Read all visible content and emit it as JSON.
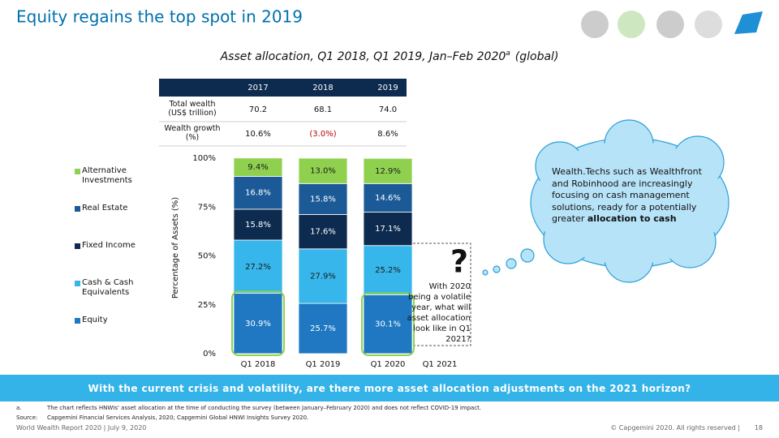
{
  "header": {
    "title": "Equity regains the top spot in 2019"
  },
  "table": {
    "columns": [
      "2017",
      "2018",
      "2019"
    ],
    "rows": [
      [
        "Total wealth (US$ trillion)",
        "70.2",
        "68.1",
        "74.0"
      ],
      [
        "Wealth growth (%)",
        "10.6%",
        "(3.0%)",
        "8.6%"
      ]
    ]
  },
  "chart_data": {
    "type": "stacked_bar",
    "title": "Asset allocation, Q1 2018, Q1 2019, Jan–Feb 2020",
    "title_note": "a",
    "title_suffix": "(global)",
    "y_label": "Percentage of Assets (%)",
    "categories": [
      "Q1 2018",
      "Q1 2019",
      "Q1 2020"
    ],
    "ylim": [
      0,
      100
    ],
    "yticks": [
      {
        "value": 0,
        "label": "0%"
      },
      {
        "value": 25,
        "label": "25%"
      },
      {
        "value": 50,
        "label": "50%"
      },
      {
        "value": 75,
        "label": "75%"
      },
      {
        "value": 100,
        "label": "100%"
      }
    ],
    "series": [
      {
        "name": "Equity",
        "color": "#1f78c1",
        "label_color": "#ffffff",
        "values": [
          30.9,
          25.7,
          30.1
        ],
        "value_labels": [
          "30.9%",
          "25.7%",
          "30.1%"
        ]
      },
      {
        "name": "Cash & Cash Equivalents",
        "color": "#36b6ea",
        "label_color": "#1a1a1a",
        "values": [
          27.2,
          27.9,
          25.2
        ],
        "value_labels": [
          "27.2%",
          "27.9%",
          "25.2%"
        ]
      },
      {
        "name": "Fixed Income",
        "color": "#0d2a4f",
        "label_color": "#ffffff",
        "values": [
          15.8,
          17.6,
          17.1
        ],
        "value_labels": [
          "15.8%",
          "17.6%",
          "17.1%"
        ]
      },
      {
        "name": "Real Estate",
        "color": "#1b5a96",
        "label_color": "#ffffff",
        "values": [
          16.8,
          15.8,
          14.6
        ],
        "value_labels": [
          "16.8%",
          "15.8%",
          "14.6%"
        ]
      },
      {
        "name": "Alternative Investments",
        "color": "#8fd14f",
        "label_color": "#1a1a1a",
        "values": [
          9.4,
          13.0,
          12.9
        ],
        "value_labels": [
          "9.4%",
          "13.0%",
          "12.9%"
        ]
      }
    ]
  },
  "outlook": {
    "label": "Q1 2021",
    "mark": "?",
    "text": "With 2020 being a volatile year, what will asset allocation look like in Q1 2021?"
  },
  "cloud": {
    "text": "Wealth.Techs such as Wealthfront and Robinhood are increasingly focusing on cash management solutions, ready for a potentially greater",
    "bold": "allocation to cash"
  },
  "banner": "With the current crisis and volatility, are there more asset allocation adjustments on the 2021 horizon?",
  "footnotes": [
    {
      "key": "a.",
      "text": "The chart reflects HNWIs' asset allocation at the time of conducting the survey (between January–February 2020) and does not reflect COVID-19 impact."
    },
    {
      "key": "Source:",
      "text": "Capgemini Financial Services Analysis, 2020; Capgemini Global HNWI Insights Survey 2020."
    }
  ],
  "footer": {
    "left": "World Wealth Report 2020 | July 9, 2020",
    "right": "© Capgemini 2020. All rights reserved |",
    "page": "18"
  }
}
